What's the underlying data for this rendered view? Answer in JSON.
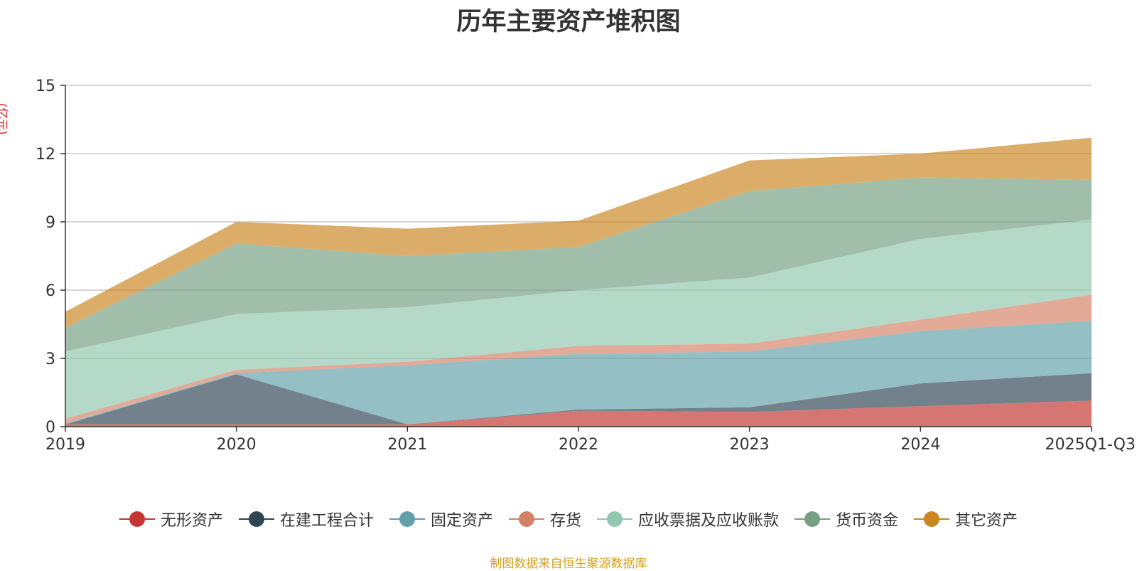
{
  "chart_data": {
    "type": "area",
    "stacked": true,
    "title": "历年主要资产堆积图",
    "ylabel": "(亿元)",
    "xlabel": "",
    "ylim": [
      0,
      15
    ],
    "yticks": [
      0,
      3,
      6,
      9,
      12,
      15
    ],
    "categories": [
      "2019",
      "2020",
      "2021",
      "2022",
      "2023",
      "2024",
      "2025Q1-Q3"
    ],
    "legend_position": "bottom",
    "grid": true,
    "series": [
      {
        "name": "无形资产",
        "color": "#c23531",
        "values": [
          0.1,
          0.1,
          0.1,
          0.7,
          0.65,
          0.9,
          1.15
        ]
      },
      {
        "name": "在建工程合计",
        "color": "#2f4554",
        "values": [
          0.0,
          2.2,
          0.0,
          0.05,
          0.2,
          1.0,
          1.2
        ]
      },
      {
        "name": "固定资产",
        "color": "#61a0a8",
        "values": [
          0.05,
          0.05,
          2.6,
          2.45,
          2.45,
          2.3,
          2.3
        ]
      },
      {
        "name": "存货",
        "color": "#d48265",
        "values": [
          0.2,
          0.15,
          0.15,
          0.35,
          0.35,
          0.5,
          1.15
        ]
      },
      {
        "name": "应收票据及应收账款",
        "color": "#91c7ae",
        "values": [
          2.95,
          2.45,
          2.4,
          2.45,
          2.9,
          3.55,
          3.3
        ]
      },
      {
        "name": "货币资金",
        "color": "#749f83",
        "values": [
          1.05,
          3.1,
          2.25,
          1.9,
          3.8,
          2.7,
          1.75
        ]
      },
      {
        "name": "其它资产",
        "color": "#ca8622",
        "values": [
          0.7,
          0.95,
          1.2,
          1.15,
          1.35,
          1.05,
          1.85
        ]
      }
    ]
  },
  "source_note": "制图数据来自恒生聚源数据库"
}
